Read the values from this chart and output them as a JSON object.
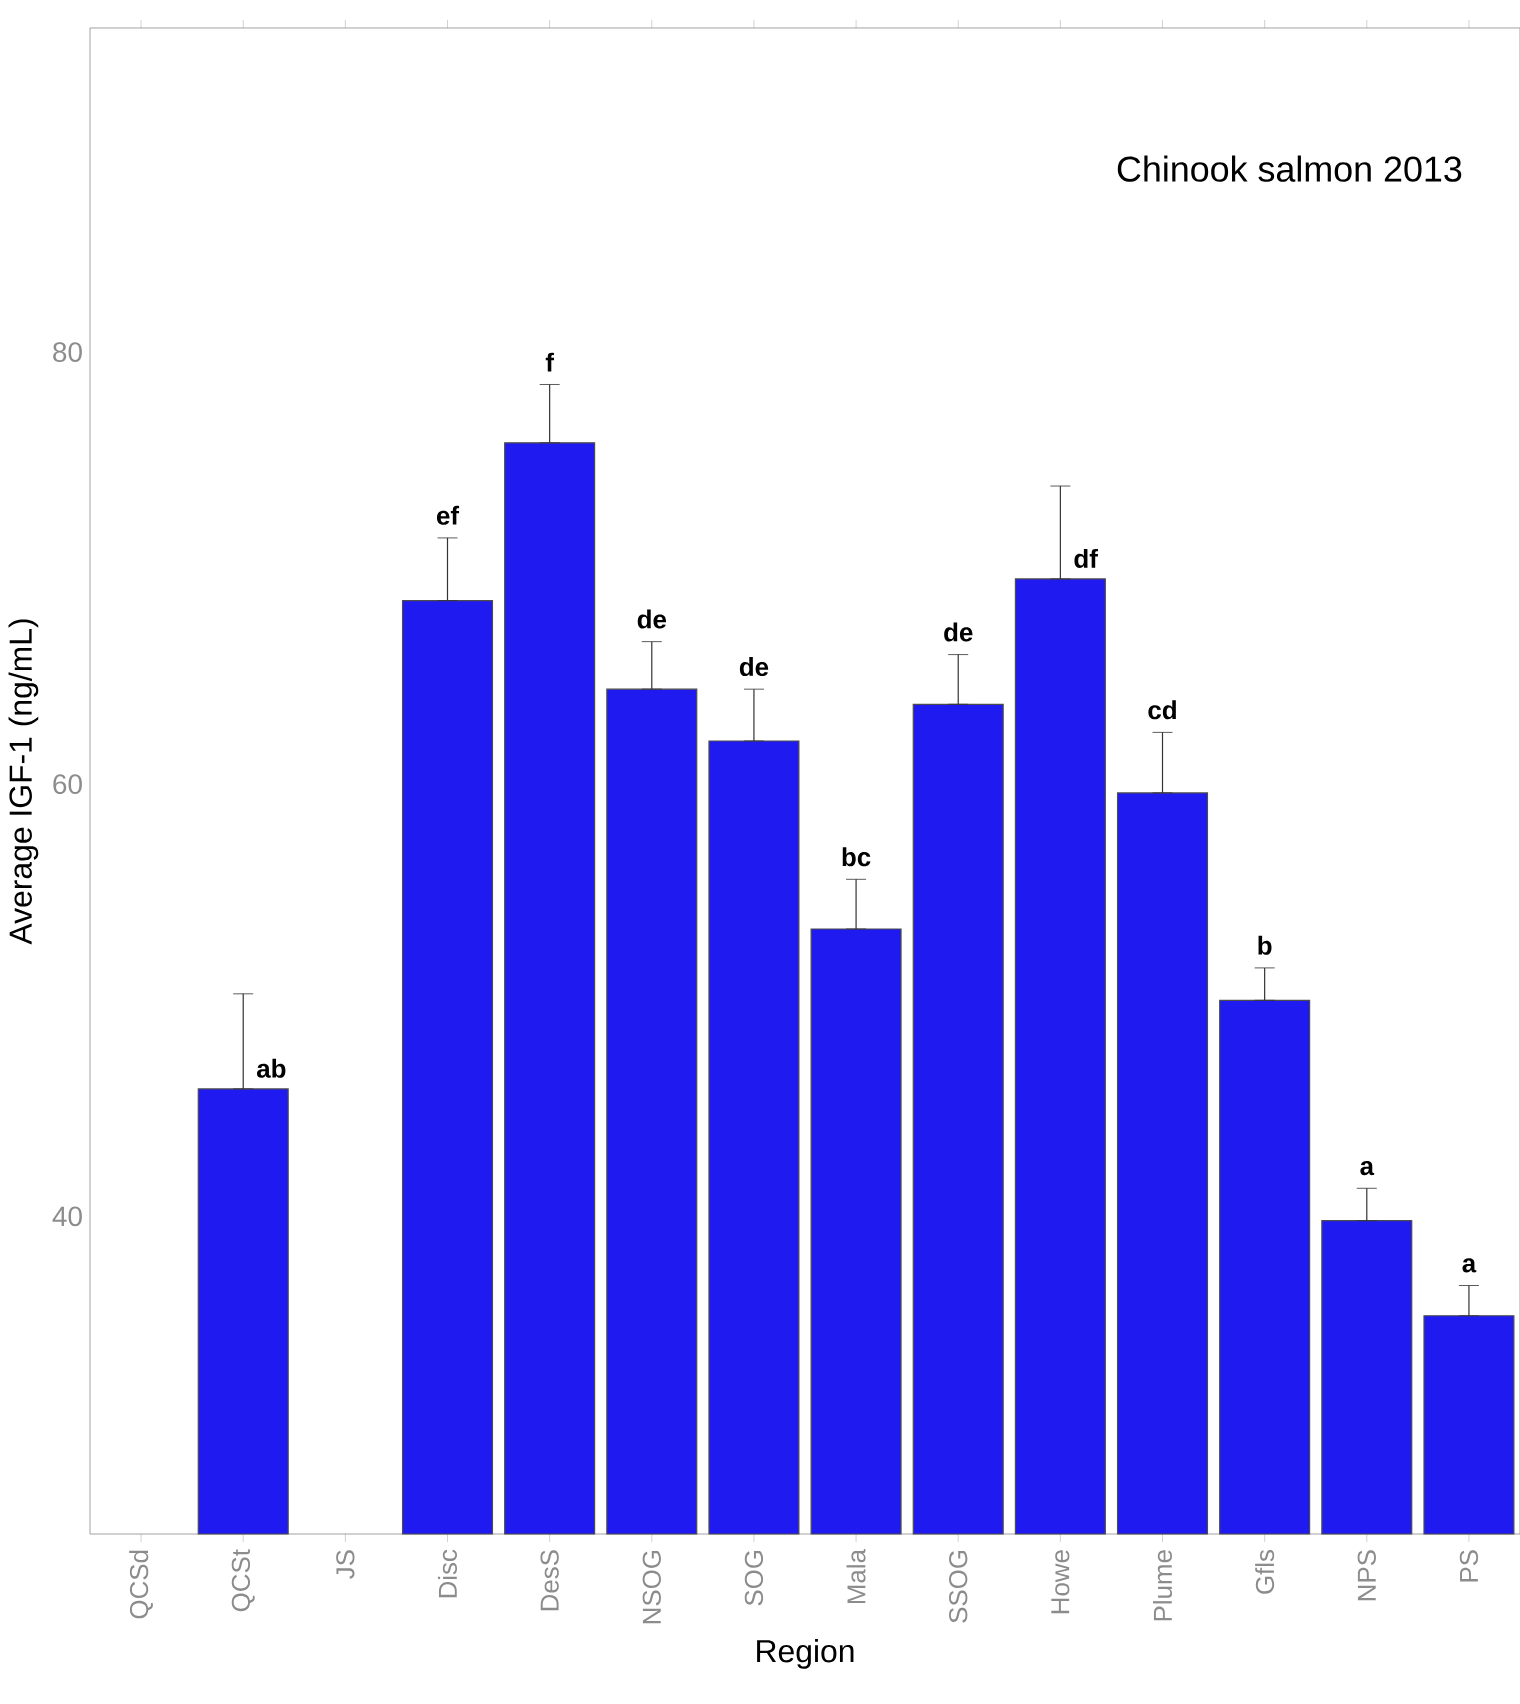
{
  "chart_data": {
    "type": "bar",
    "title": "Chinook salmon 2013",
    "xlabel": "Region",
    "ylabel": "Average IGF-1 (ng/mL)",
    "categories": [
      "QCSd",
      "QCSt",
      "JS",
      "Disc",
      "DesS",
      "NSOG",
      "SOG",
      "Mala",
      "SSOG",
      "Howe",
      "Plume",
      "Gfls",
      "NPS",
      "PS"
    ],
    "values": [
      null,
      45.9,
      null,
      68.5,
      75.8,
      64.4,
      62.0,
      53.3,
      63.7,
      69.5,
      59.6,
      50.0,
      39.8,
      35.4
    ],
    "errors": [
      null,
      [
        45.9,
        50.3
      ],
      null,
      [
        68.5,
        71.4
      ],
      [
        75.8,
        78.5
      ],
      [
        64.4,
        66.6
      ],
      [
        62.0,
        64.4
      ],
      [
        53.3,
        55.6
      ],
      [
        63.7,
        66.0
      ],
      [
        69.5,
        73.8
      ],
      [
        59.6,
        62.4
      ],
      [
        50.0,
        51.5
      ],
      [
        39.8,
        41.3
      ],
      [
        35.4,
        36.8
      ]
    ],
    "value_labels": [
      null,
      "ab",
      null,
      "ef",
      "f",
      "de",
      "de",
      "bc",
      "de",
      "df",
      "cd",
      "b",
      "a",
      "a"
    ],
    "color": "#1f1af0",
    "ylim": [
      25.3,
      95
    ],
    "yticks": [
      40,
      60,
      80
    ]
  }
}
